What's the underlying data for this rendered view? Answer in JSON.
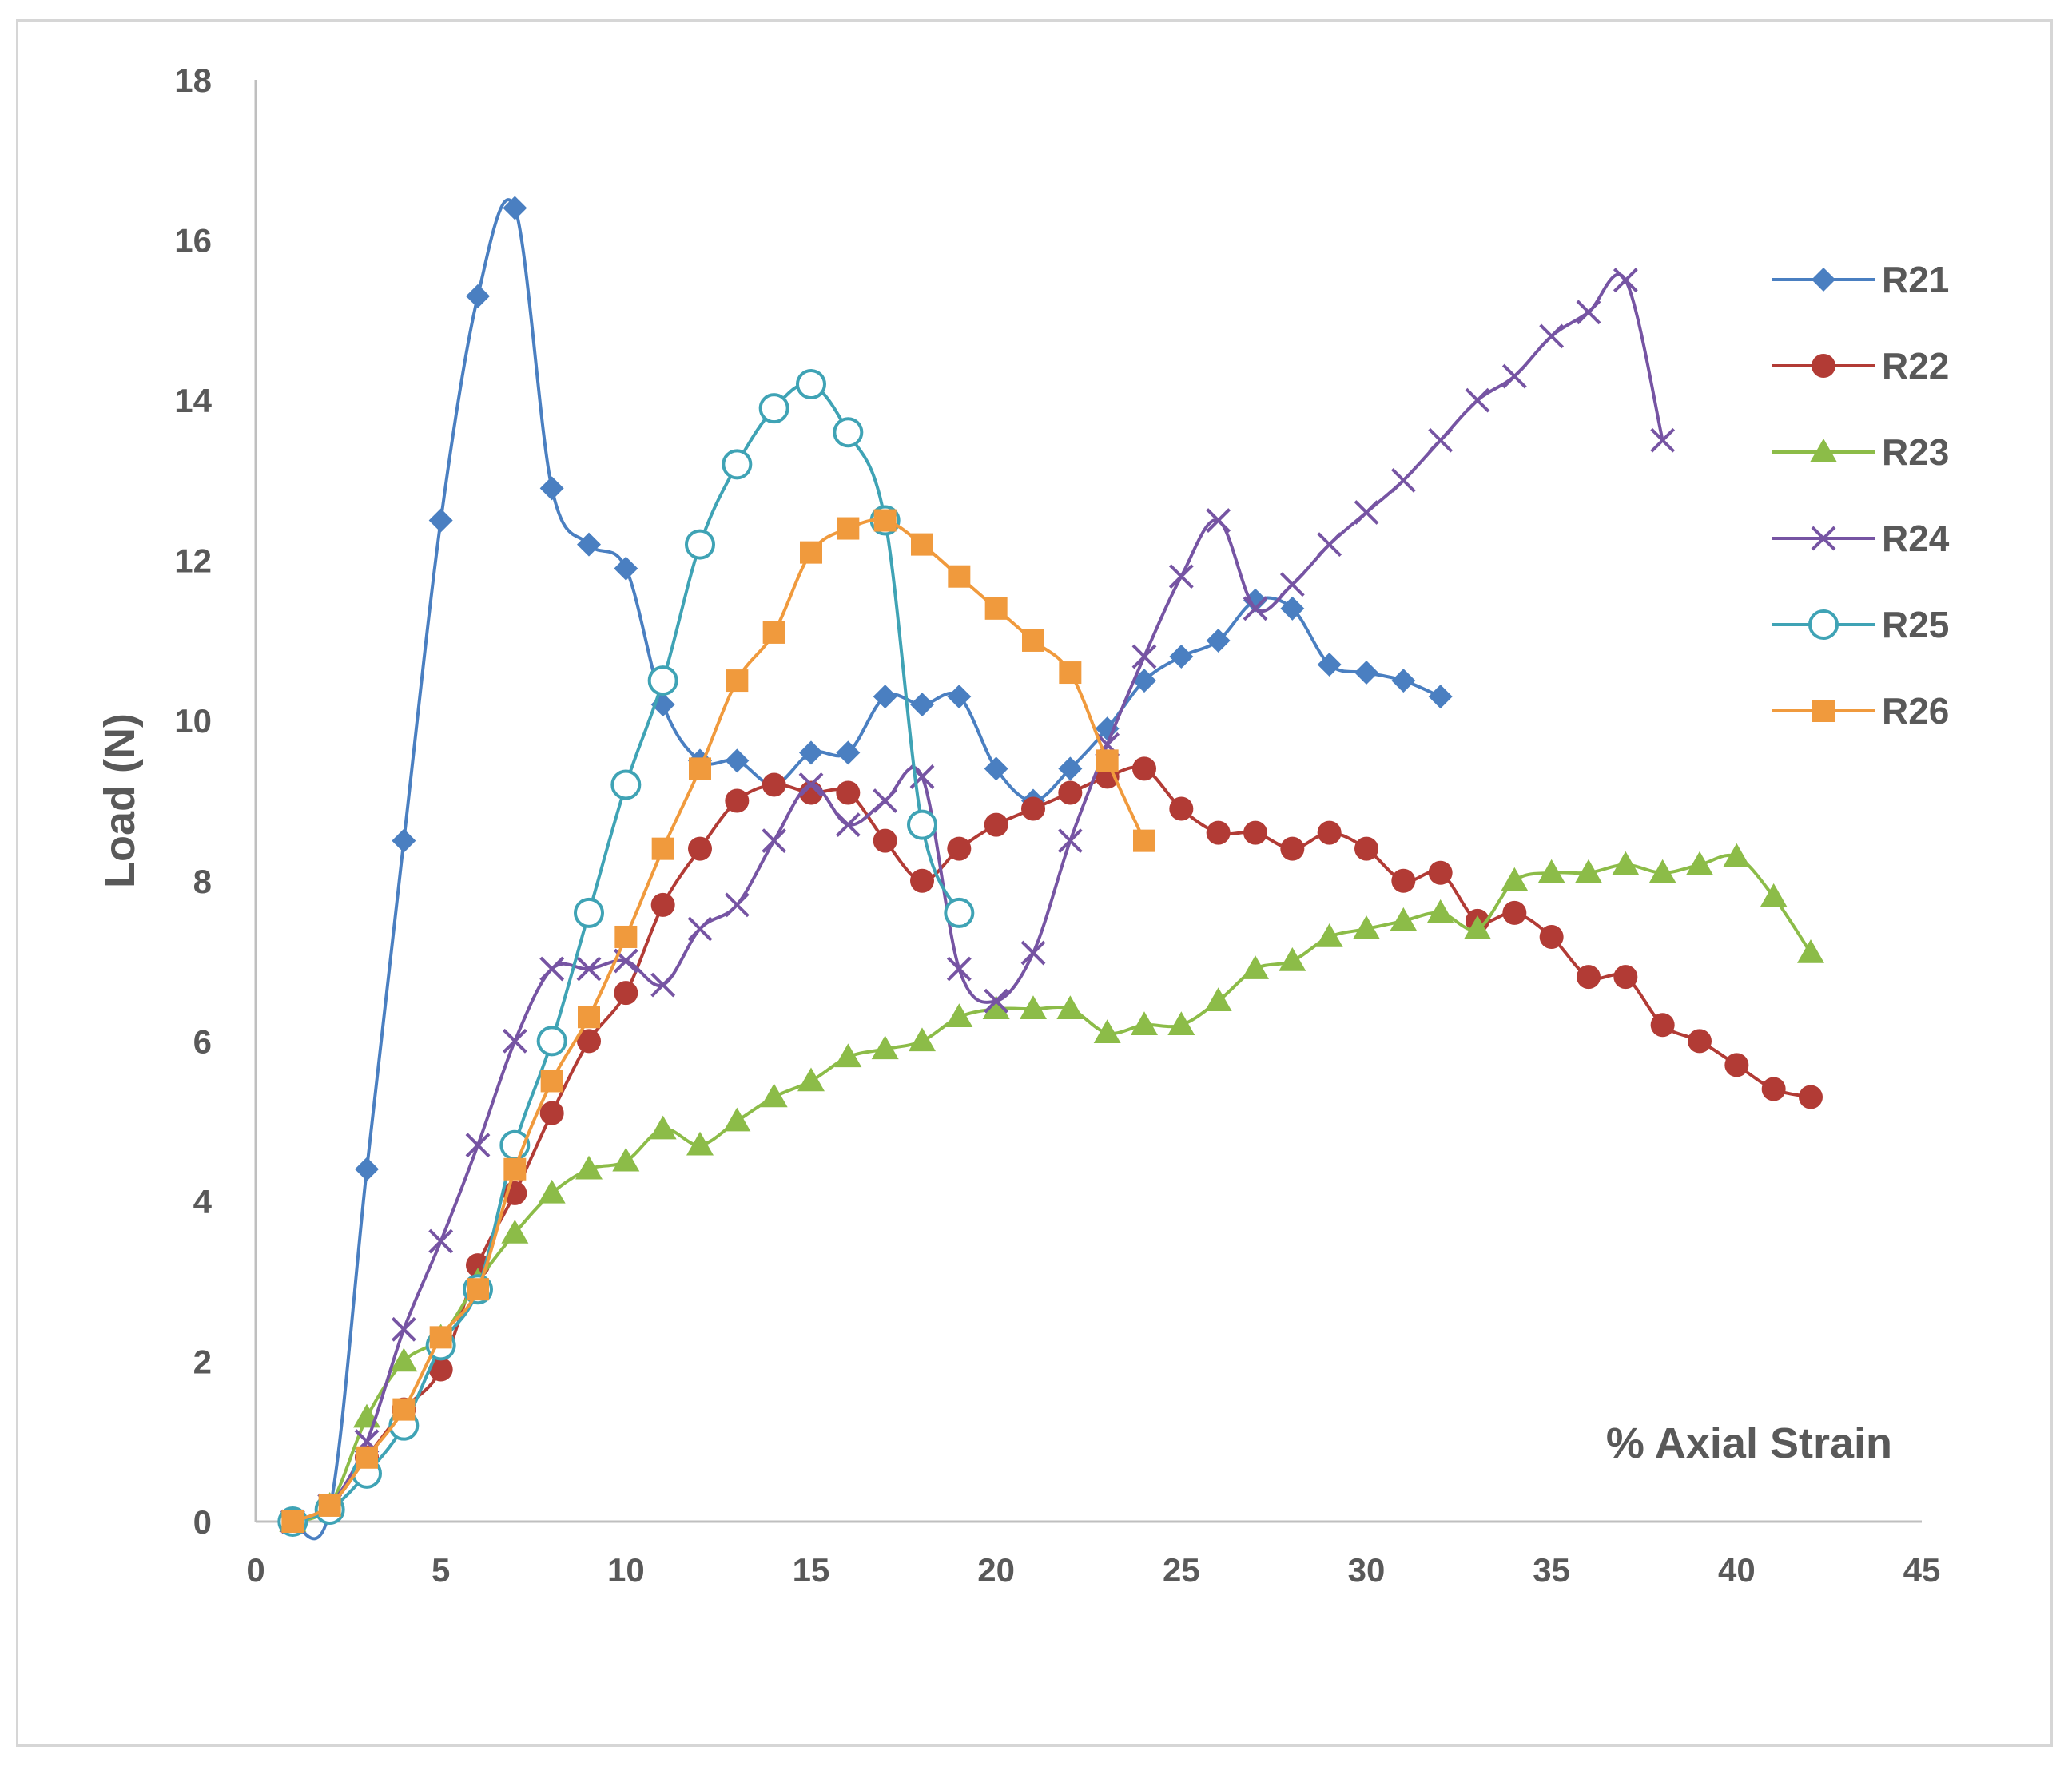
{
  "chart_data": {
    "type": "line",
    "title": "",
    "xlabel": "% Axial Strain",
    "ylabel": "Load (N)",
    "xlim": [
      0,
      45
    ],
    "ylim": [
      0,
      18
    ],
    "xticks": [
      0,
      5,
      10,
      15,
      20,
      25,
      30,
      35,
      40,
      45
    ],
    "yticks": [
      0,
      2,
      4,
      6,
      8,
      10,
      12,
      14,
      16,
      18
    ],
    "grid": false,
    "legend_position": "right",
    "series": [
      {
        "name": "R21",
        "color": "#4a7fc1",
        "marker": "diamond",
        "x": [
          1,
          2,
          3,
          4,
          5,
          6,
          7,
          8,
          9,
          10,
          11,
          12,
          13,
          14,
          15,
          16,
          17,
          18,
          19,
          20,
          21,
          22,
          23,
          24,
          25,
          26,
          27,
          28,
          29,
          30,
          31,
          32
        ],
        "y": [
          0,
          0.15,
          4.4,
          8.5,
          12.5,
          15.3,
          16.4,
          12.9,
          12.2,
          11.9,
          10.2,
          9.5,
          9.5,
          9.2,
          9.6,
          9.6,
          10.3,
          10.2,
          10.3,
          9.4,
          9.0,
          9.4,
          9.9,
          10.5,
          10.8,
          11.0,
          11.5,
          11.4,
          10.7,
          10.6,
          10.5,
          10.3
        ]
      },
      {
        "name": "R22",
        "color": "#b23b35",
        "marker": "circle",
        "x": [
          1,
          2,
          3,
          4,
          5,
          6,
          7,
          8,
          9,
          10,
          11,
          12,
          13,
          14,
          15,
          16,
          17,
          18,
          19,
          20,
          21,
          22,
          23,
          24,
          25,
          26,
          27,
          28,
          29,
          30,
          31,
          32,
          33,
          34,
          35,
          36,
          37,
          38,
          39,
          40,
          41,
          42
        ],
        "y": [
          0,
          0.2,
          0.8,
          1.4,
          1.9,
          3.2,
          4.1,
          5.1,
          6.0,
          6.6,
          7.7,
          8.4,
          9.0,
          9.2,
          9.1,
          9.1,
          8.5,
          8.0,
          8.4,
          8.7,
          8.9,
          9.1,
          9.3,
          9.4,
          8.9,
          8.6,
          8.6,
          8.4,
          8.6,
          8.4,
          8.0,
          8.1,
          7.5,
          7.6,
          7.3,
          6.8,
          6.8,
          6.2,
          6.0,
          5.7,
          5.4,
          5.3
        ]
      },
      {
        "name": "R23",
        "color": "#8cbc48",
        "marker": "triangle",
        "x": [
          1,
          2,
          3,
          4,
          5,
          6,
          7,
          8,
          9,
          10,
          11,
          12,
          13,
          14,
          15,
          16,
          17,
          18,
          19,
          20,
          21,
          22,
          23,
          24,
          25,
          26,
          27,
          28,
          29,
          30,
          31,
          32,
          33,
          34,
          35,
          36,
          37,
          38,
          39,
          40,
          41,
          42
        ],
        "y": [
          0,
          0.2,
          1.3,
          2.0,
          2.3,
          3.0,
          3.6,
          4.1,
          4.4,
          4.5,
          4.9,
          4.7,
          5.0,
          5.3,
          5.5,
          5.8,
          5.9,
          6.0,
          6.3,
          6.4,
          6.4,
          6.4,
          6.1,
          6.2,
          6.2,
          6.5,
          6.9,
          7.0,
          7.3,
          7.4,
          7.5,
          7.6,
          7.4,
          8.0,
          8.1,
          8.1,
          8.2,
          8.1,
          8.2,
          8.3,
          7.8,
          7.1
        ]
      },
      {
        "name": "R24",
        "color": "#7654a3",
        "marker": "x",
        "x": [
          1,
          2,
          3,
          4,
          5,
          6,
          7,
          8,
          9,
          10,
          11,
          12,
          13,
          14,
          15,
          16,
          17,
          18,
          19,
          20,
          21,
          22,
          23,
          24,
          25,
          26,
          27,
          28,
          29,
          30,
          31,
          32,
          33,
          34,
          35,
          36,
          37,
          38
        ],
        "y": [
          0,
          0.2,
          1.0,
          2.4,
          3.5,
          4.7,
          6.0,
          6.9,
          6.9,
          7.0,
          6.7,
          7.4,
          7.7,
          8.5,
          9.2,
          8.7,
          9.0,
          9.3,
          6.9,
          6.5,
          7.1,
          8.5,
          9.7,
          10.8,
          11.8,
          12.5,
          11.4,
          11.7,
          12.2,
          12.6,
          13.0,
          13.5,
          14.0,
          14.3,
          14.8,
          15.1,
          15.5,
          13.5
        ]
      },
      {
        "name": "R25",
        "color": "#3fa3b5",
        "marker": "open-circle",
        "x": [
          1,
          2,
          3,
          4,
          5,
          6,
          7,
          8,
          9,
          10,
          11,
          12,
          13,
          14,
          15,
          16,
          17,
          18,
          19
        ],
        "y": [
          0,
          0.15,
          0.6,
          1.2,
          2.2,
          2.9,
          4.7,
          6.0,
          7.6,
          9.2,
          10.5,
          12.2,
          13.2,
          13.9,
          14.2,
          13.6,
          12.5,
          8.7,
          7.6
        ]
      },
      {
        "name": "R26",
        "color": "#f09a3d",
        "marker": "square",
        "x": [
          1,
          2,
          3,
          4,
          5,
          6,
          7,
          8,
          9,
          10,
          11,
          12,
          13,
          14,
          15,
          16,
          17,
          18,
          19,
          20,
          21,
          22,
          23,
          24
        ],
        "y": [
          0,
          0.2,
          0.8,
          1.4,
          2.3,
          2.9,
          4.4,
          5.5,
          6.3,
          7.3,
          8.4,
          9.4,
          10.5,
          11.1,
          12.1,
          12.4,
          12.5,
          12.2,
          11.8,
          11.4,
          11.0,
          10.6,
          9.5,
          8.5
        ]
      }
    ]
  }
}
